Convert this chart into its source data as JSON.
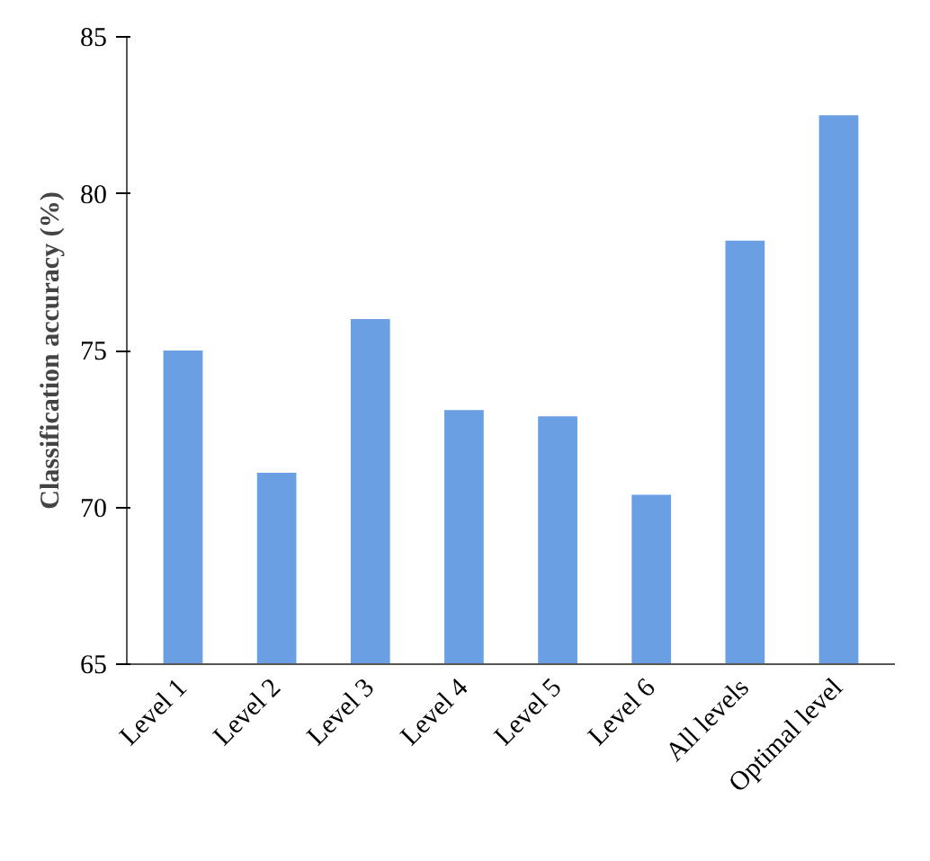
{
  "chart_data": {
    "type": "bar",
    "ylabel": "Classification accuracy (%)",
    "categories": [
      "Level 1",
      "Level 2",
      "Level 3",
      "Level 4",
      "Level 5",
      "Level 6",
      "All levels",
      "Optimal level"
    ],
    "values": [
      75.0,
      71.1,
      76.0,
      73.1,
      72.9,
      70.4,
      78.5,
      82.5
    ],
    "color": "#6a9fe3",
    "ylim": [
      65,
      85
    ],
    "yticks": [
      65,
      70,
      75,
      80,
      85
    ],
    "grid": false
  }
}
